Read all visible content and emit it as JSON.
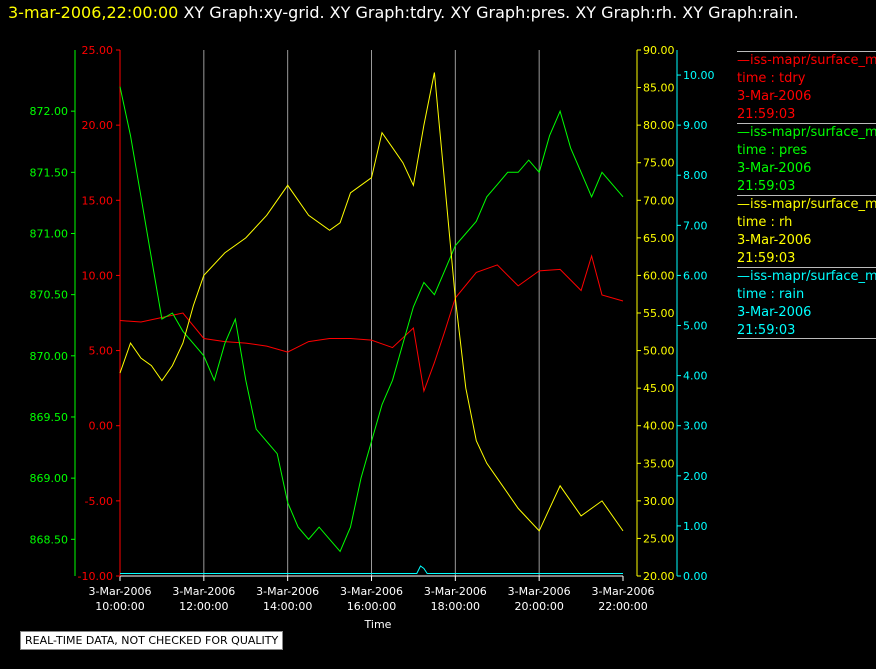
{
  "header": {
    "datetime": "3-mar-2006,22:00:00",
    "graph_names": "XY Graph:xy-grid.  XY Graph:tdry.  XY Graph:pres.  XY Graph:rh.  XY Graph:rain."
  },
  "footer": {
    "note": "REAL-TIME DATA, NOT CHECKED FOR QUALITY"
  },
  "legend": [
    {
      "name": "—iss-mapr/surface_m",
      "field": "time : tdry",
      "date": "3-Mar-2006",
      "time": "21:59:03",
      "color": "#ff0000"
    },
    {
      "name": "—iss-mapr/surface_m",
      "field": "time : pres",
      "date": "3-Mar-2006",
      "time": "21:59:03",
      "color": "#00ff00"
    },
    {
      "name": "—iss-mapr/surface_m",
      "field": "time : rh",
      "date": "3-Mar-2006",
      "time": "21:59:03",
      "color": "#ffff00"
    },
    {
      "name": "—iss-mapr/surface_m",
      "field": "time : rain",
      "date": "3-Mar-2006",
      "time": "21:59:03",
      "color": "#00ffff"
    }
  ],
  "chart_data": {
    "type": "line",
    "xlabel": "Time",
    "x_ticks": [
      "3-Mar-2006 10:00:00",
      "3-Mar-2006 12:00:00",
      "3-Mar-2006 14:00:00",
      "3-Mar-2006 16:00:00",
      "3-Mar-2006 18:00:00",
      "3-Mar-2006 20:00:00",
      "3-Mar-2006 22:00:00"
    ],
    "xlim": [
      "10:00",
      "22:00"
    ],
    "grid": "vertical",
    "axes": {
      "tdry": {
        "color": "#ff0000",
        "ylim": [
          -10,
          25
        ],
        "ticks": [
          "25.00",
          "20.00",
          "15.00",
          "10.00",
          "5.00",
          "0.00",
          "-5.00",
          "-10.00"
        ]
      },
      "pres": {
        "color": "#00ff00",
        "ylim": [
          868.2,
          872.5
        ],
        "ticks": [
          "872.00",
          "871.50",
          "871.00",
          "870.50",
          "870.00",
          "869.50",
          "869.00",
          "868.50"
        ]
      },
      "rh": {
        "color": "#ffff00",
        "ylim": [
          20,
          90
        ],
        "ticks": [
          "90.00",
          "85.00",
          "80.00",
          "75.00",
          "70.00",
          "65.00",
          "60.00",
          "55.00",
          "50.00",
          "45.00",
          "40.00",
          "35.00",
          "30.00",
          "25.00",
          "20.00"
        ]
      },
      "rain": {
        "color": "#00ffff",
        "ylim": [
          0,
          10.5
        ],
        "ticks": [
          "10.00",
          "9.00",
          "8.00",
          "7.00",
          "6.00",
          "5.00",
          "4.00",
          "3.00",
          "2.00",
          "1.00",
          "0.00"
        ]
      }
    },
    "series": [
      {
        "name": "tdry",
        "axis": "tdry",
        "x": [
          10.0,
          10.5,
          11.0,
          11.5,
          12.0,
          12.5,
          13.0,
          13.5,
          14.0,
          14.5,
          15.0,
          15.5,
          16.0,
          16.5,
          17.0,
          17.25,
          17.5,
          17.75,
          18.0,
          18.5,
          19.0,
          19.5,
          20.0,
          20.5,
          21.0,
          21.25,
          21.5,
          22.0
        ],
        "y": [
          7.0,
          6.9,
          7.2,
          7.5,
          5.8,
          5.6,
          5.5,
          5.3,
          4.9,
          5.6,
          5.8,
          5.8,
          5.7,
          5.2,
          6.5,
          2.3,
          4.2,
          6.3,
          8.5,
          10.2,
          10.7,
          9.3,
          10.3,
          10.4,
          9.0,
          11.3,
          8.7,
          8.3
        ]
      },
      {
        "name": "pres",
        "axis": "pres",
        "x": [
          10.0,
          10.25,
          10.5,
          10.75,
          11.0,
          11.25,
          11.5,
          11.75,
          12.0,
          12.25,
          12.5,
          12.75,
          13.0,
          13.25,
          13.5,
          13.75,
          14.0,
          14.25,
          14.5,
          14.75,
          15.0,
          15.25,
          15.5,
          15.75,
          16.0,
          16.25,
          16.5,
          16.75,
          17.0,
          17.25,
          17.5,
          17.75,
          18.0,
          18.25,
          18.5,
          18.75,
          19.0,
          19.25,
          19.5,
          19.75,
          20.0,
          20.25,
          20.5,
          20.75,
          21.0,
          21.25,
          21.5,
          21.75,
          22.0
        ],
        "y": [
          872.2,
          871.8,
          871.3,
          870.8,
          870.3,
          870.35,
          870.2,
          870.1,
          870.0,
          869.8,
          870.1,
          870.3,
          869.8,
          869.4,
          869.3,
          869.2,
          868.8,
          868.6,
          868.5,
          868.6,
          868.5,
          868.4,
          868.6,
          869.0,
          869.3,
          869.6,
          869.8,
          870.1,
          870.4,
          870.6,
          870.5,
          870.7,
          870.9,
          871.0,
          871.1,
          871.3,
          871.4,
          871.5,
          871.5,
          871.6,
          871.5,
          871.8,
          872.0,
          871.7,
          871.5,
          871.3,
          871.5,
          871.4,
          871.3
        ]
      },
      {
        "name": "rh",
        "axis": "rh",
        "x": [
          10.0,
          10.25,
          10.5,
          10.75,
          11.0,
          11.25,
          11.5,
          11.75,
          12.0,
          12.5,
          13.0,
          13.5,
          14.0,
          14.5,
          15.0,
          15.25,
          15.5,
          16.0,
          16.25,
          16.5,
          16.75,
          17.0,
          17.25,
          17.5,
          17.75,
          18.0,
          18.25,
          18.5,
          18.75,
          19.0,
          19.5,
          20.0,
          20.25,
          20.5,
          21.0,
          21.25,
          21.5,
          22.0
        ],
        "y": [
          47,
          51,
          49,
          48,
          46,
          48,
          51,
          56,
          60,
          63,
          65,
          68,
          72,
          68,
          66,
          67,
          71,
          73,
          79,
          77,
          75,
          72,
          80,
          87,
          72,
          57,
          45,
          38,
          35,
          33,
          29,
          26,
          29,
          32,
          28,
          29,
          30,
          26
        ]
      },
      {
        "name": "rain",
        "axis": "rain",
        "x": [
          10.0,
          17.0,
          17.08,
          17.17,
          17.25,
          17.33,
          17.42,
          22.0
        ],
        "y": [
          0.05,
          0.05,
          0.05,
          0.2,
          0.15,
          0.05,
          0.05,
          0.05
        ]
      }
    ]
  }
}
